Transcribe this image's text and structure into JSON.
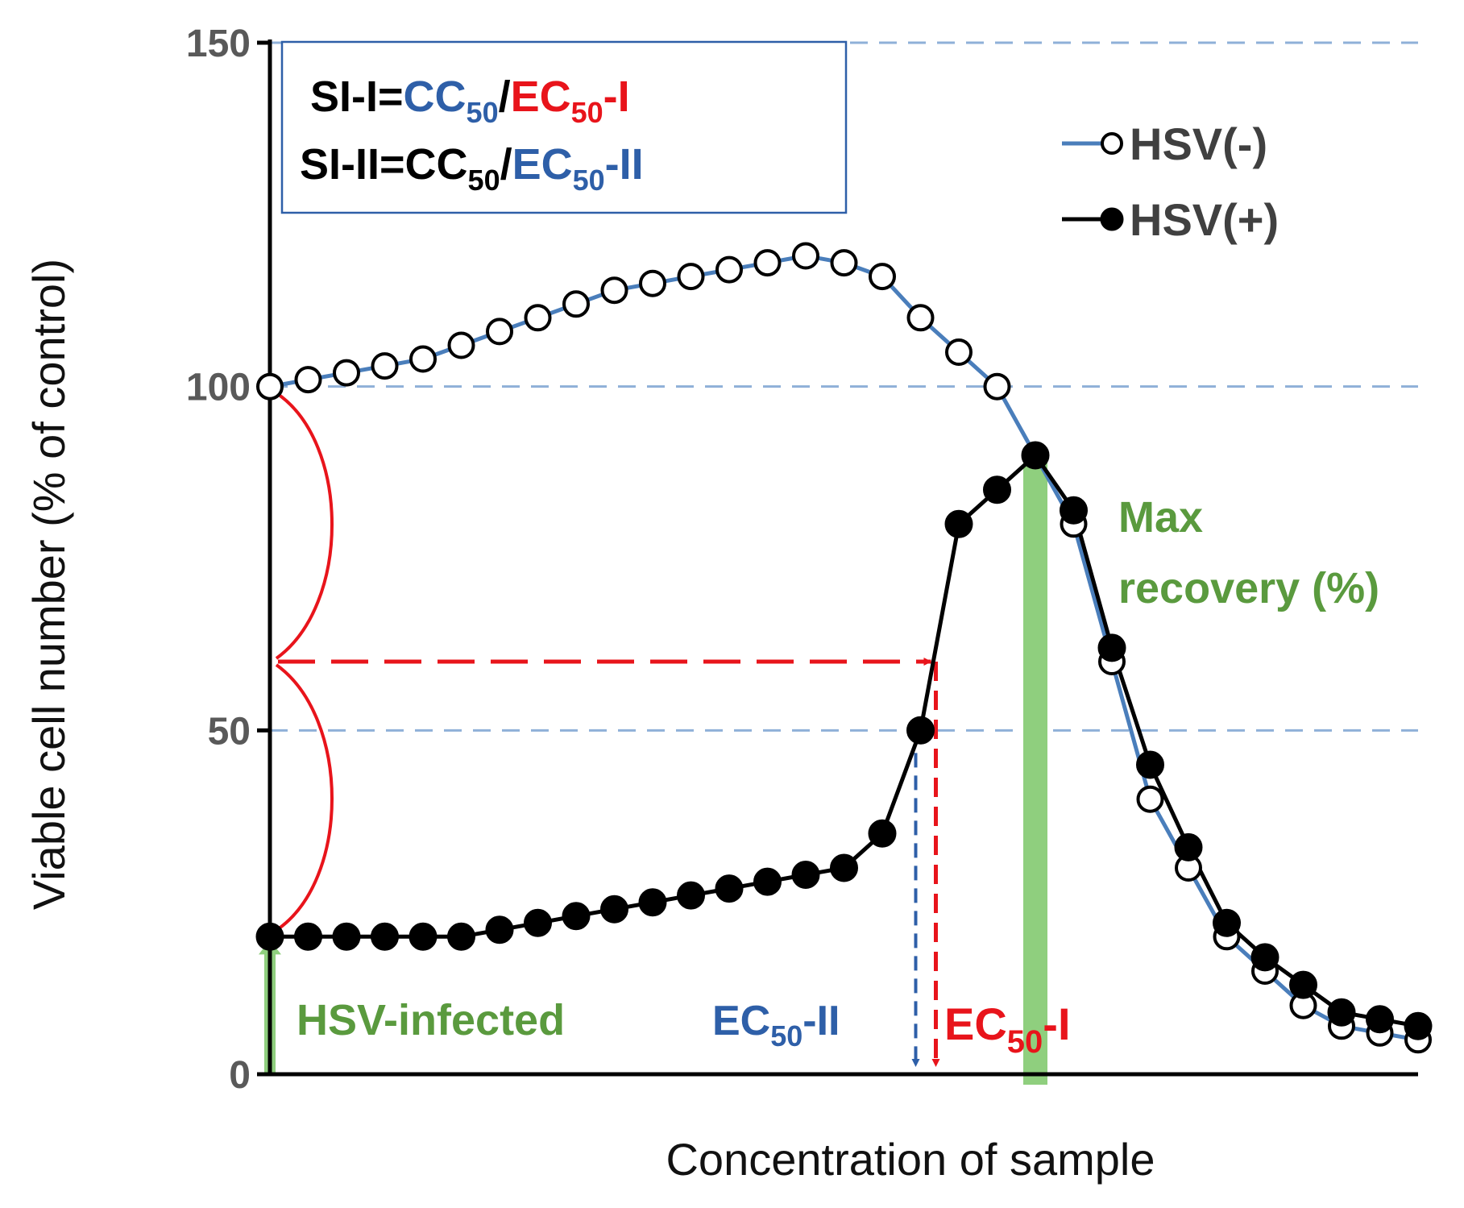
{
  "chart_data": {
    "type": "line",
    "title": "",
    "xlabel": "Concentration of sample",
    "ylabel": "Viable cell number (% of control)",
    "ylim": [
      0,
      150
    ],
    "yticks": [
      0,
      50,
      100,
      150
    ],
    "grid": "dashed horizontal lines at 50, 100, 150",
    "legend_position": "top-right",
    "x_index_range": [
      0,
      30
    ],
    "series": [
      {
        "name": "HSV(-)",
        "marker": "open-circle",
        "line_color": "#4a7ebb",
        "x": [
          0,
          1,
          2,
          3,
          4,
          5,
          6,
          7,
          8,
          9,
          10,
          11,
          12,
          13,
          14,
          15,
          16,
          17,
          18,
          19,
          20,
          21,
          22,
          23,
          24,
          25,
          26,
          27,
          28,
          29,
          30
        ],
        "values": [
          100,
          101,
          102,
          103,
          104,
          106,
          108,
          110,
          112,
          114,
          115,
          116,
          117,
          118,
          119,
          118,
          116,
          110,
          105,
          100,
          90,
          80,
          60,
          40,
          30,
          20,
          15,
          10,
          7,
          6,
          5
        ]
      },
      {
        "name": "HSV(+)",
        "marker": "filled-circle",
        "line_color": "#000000",
        "x": [
          0,
          1,
          2,
          3,
          4,
          5,
          6,
          7,
          8,
          9,
          10,
          11,
          12,
          13,
          14,
          15,
          16,
          17,
          18,
          19,
          20,
          21,
          22,
          23,
          24,
          25,
          26,
          27,
          28,
          29,
          30
        ],
        "values": [
          20,
          20,
          20,
          20,
          20,
          20,
          21,
          22,
          23,
          24,
          25,
          26,
          27,
          28,
          29,
          30,
          35,
          50,
          80,
          85,
          90,
          82,
          62,
          45,
          33,
          22,
          17,
          13,
          9,
          8,
          7
        ]
      }
    ],
    "formula_box": {
      "line1": {
        "prefix": "SI-I=",
        "cc": "CC",
        "cc_sub": "50",
        "slash": "/",
        "ec": "EC",
        "ec_sub": "50",
        "ec_suffix": "-I"
      },
      "line2": {
        "prefix": "SI-II=",
        "cc": "CC",
        "cc_sub": "50",
        "slash": "/",
        "ec": "EC",
        "ec_sub": "50",
        "ec_suffix": "-II"
      }
    },
    "annotations": {
      "hsv_infected": {
        "text": "HSV-infected",
        "y_value": 20
      },
      "max_recovery": {
        "line1": "Max",
        "line2": "recovery (%)",
        "x_value": 20,
        "y_value": 90
      },
      "ec50_ii": {
        "base": "EC",
        "sub": "50",
        "suffix": "-II",
        "x_value": 17
      },
      "ec50_i": {
        "base": "EC",
        "sub": "50",
        "suffix": "-I",
        "x_value": 17.4,
        "y_value": 60
      }
    },
    "colors": {
      "blue": "#2e5fa8",
      "red": "#e8141b",
      "green": "#5a9a3e",
      "green_bar": "#8fcf7e",
      "grid": "#8fb0d8"
    }
  }
}
